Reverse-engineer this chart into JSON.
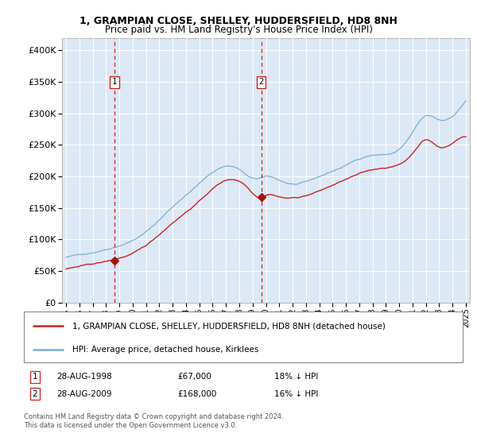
{
  "title": "1, GRAMPIAN CLOSE, SHELLEY, HUDDERSFIELD, HD8 8NH",
  "subtitle": "Price paid vs. HM Land Registry's House Price Index (HPI)",
  "background_color": "#ffffff",
  "plot_bg_color": "#dce8f5",
  "sale1_date": "28-AUG-1998",
  "sale1_price": 67000,
  "sale1_hpi_pct": "18% ↓ HPI",
  "sale1_year": 1998.65,
  "sale2_date": "28-AUG-2009",
  "sale2_price": 168000,
  "sale2_hpi_pct": "16% ↓ HPI",
  "sale2_year": 2009.65,
  "legend_line1": "1, GRAMPIAN CLOSE, SHELLEY, HUDDERSFIELD, HD8 8NH (detached house)",
  "legend_line2": "HPI: Average price, detached house, Kirklees",
  "footer": "Contains HM Land Registry data © Crown copyright and database right 2024.\nThis data is licensed under the Open Government Licence v3.0.",
  "hpi_color": "#7bafd4",
  "price_color": "#cc2222",
  "marker_color": "#aa1111",
  "vline_color": "#cc2222",
  "ylim": [
    0,
    420000
  ],
  "xlim": [
    1994.7,
    2025.3
  ],
  "yticks": [
    0,
    50000,
    100000,
    150000,
    200000,
    250000,
    300000,
    350000,
    400000
  ]
}
